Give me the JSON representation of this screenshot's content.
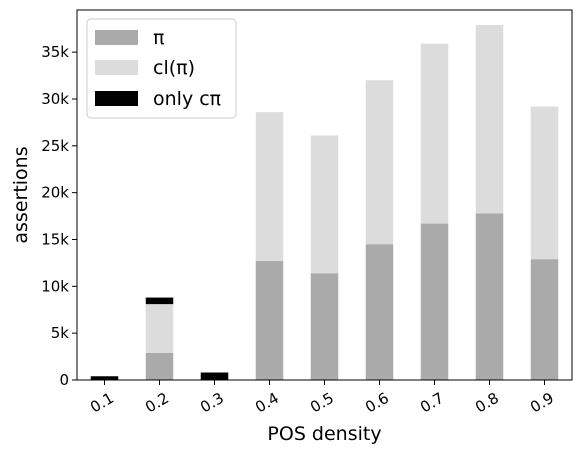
{
  "chart_data": {
    "type": "bar",
    "stacked": true,
    "categories": [
      "0.1",
      "0.2",
      "0.3",
      "0.4",
      "0.5",
      "0.6",
      "0.7",
      "0.8",
      "0.9"
    ],
    "series": [
      {
        "name": "π",
        "color": "#aaaaaa",
        "values": [
          0,
          2900,
          0,
          12700,
          11400,
          14500,
          16700,
          17800,
          12900
        ]
      },
      {
        "name": "cl(π)",
        "color": "#dcdcdc",
        "values": [
          0,
          5200,
          0,
          15900,
          14700,
          17500,
          19200,
          20100,
          16300
        ]
      },
      {
        "name": "only cπ",
        "color": "#000000",
        "values": [
          400,
          700,
          800,
          0,
          0,
          0,
          0,
          0,
          0
        ]
      }
    ],
    "xlabel": "POS density",
    "ylabel": "assertions",
    "ylim": [
      0,
      39500
    ],
    "yticks": [
      0,
      5000,
      10000,
      15000,
      20000,
      25000,
      30000,
      35000
    ],
    "ytick_labels": [
      "0",
      "5k",
      "10k",
      "15k",
      "20k",
      "25k",
      "30k",
      "35k"
    ],
    "legend": "top-left",
    "grid": false
  }
}
